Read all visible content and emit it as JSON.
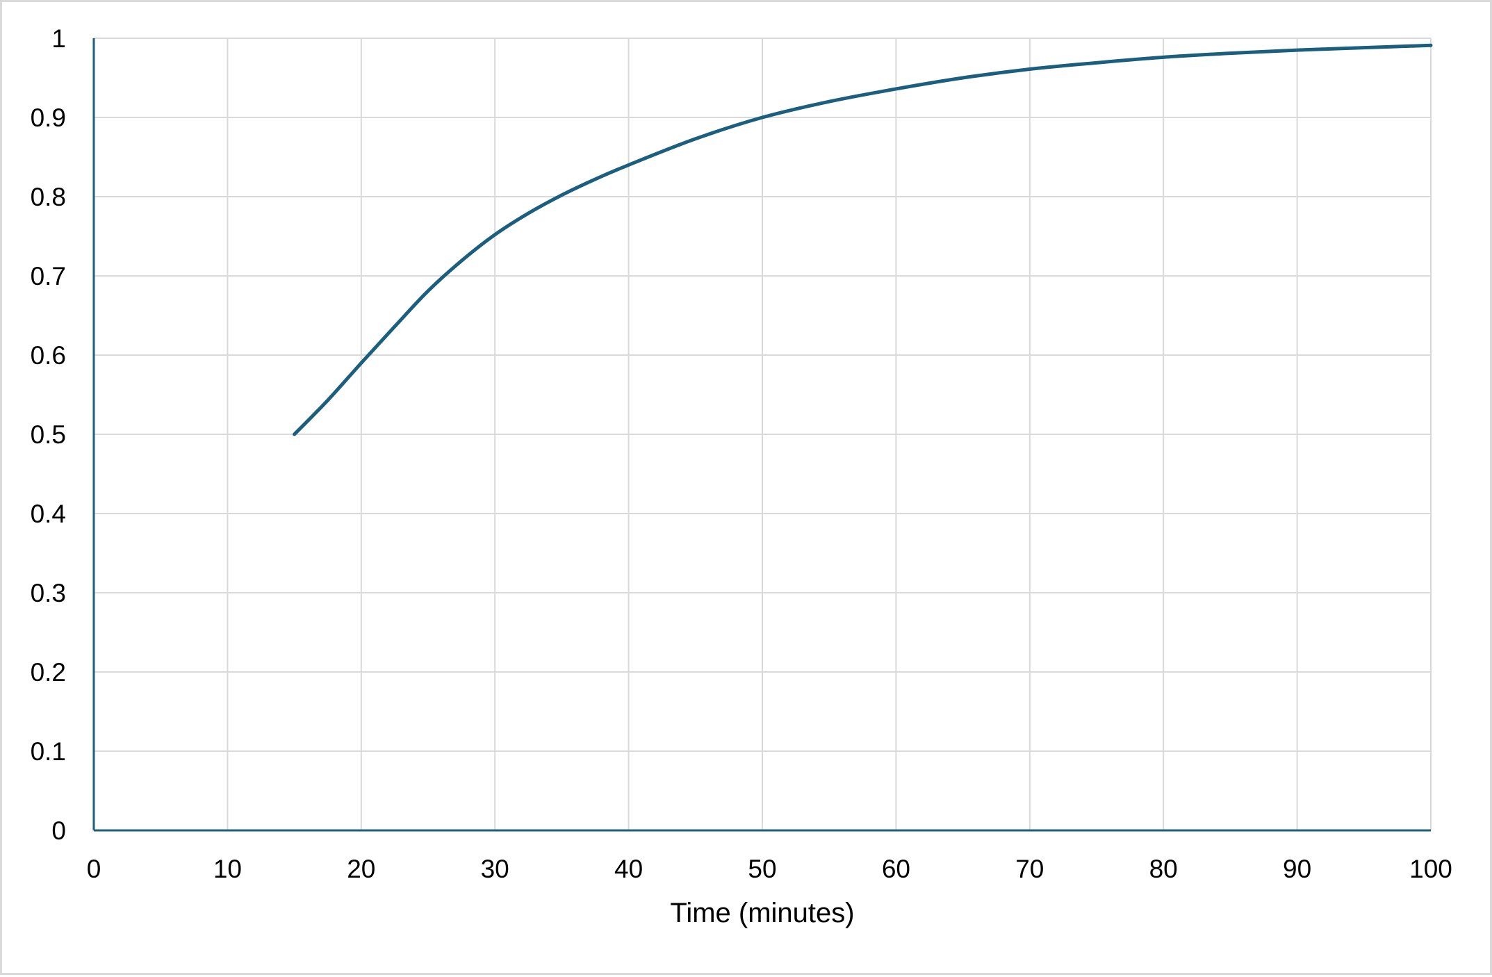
{
  "chart_data": {
    "type": "line",
    "title": "",
    "xlabel": "Time (minutes)",
    "ylabel": "",
    "xlim": [
      0,
      100
    ],
    "ylim": [
      0,
      1
    ],
    "x_ticks": [
      "0",
      "10",
      "20",
      "30",
      "40",
      "50",
      "60",
      "70",
      "80",
      "90",
      "100"
    ],
    "y_ticks": [
      "0",
      "0.1",
      "0.2",
      "0.3",
      "0.4",
      "0.5",
      "0.6",
      "0.7",
      "0.8",
      "0.9",
      "1"
    ],
    "grid": true,
    "legend": "none",
    "colors": {
      "line": "#1b5e7e",
      "axis": "#1b5e7e",
      "grid": "#d9d9d9"
    },
    "series": [
      {
        "x": [
          15,
          17.5,
          20,
          22.5,
          25,
          27.5,
          30,
          32.5,
          35,
          37.5,
          40,
          45,
          50,
          55,
          60,
          65,
          70,
          75,
          80,
          85,
          90,
          95,
          100
        ],
        "y": [
          0.5,
          0.543,
          0.59,
          0.636,
          0.681,
          0.719,
          0.752,
          0.779,
          0.802,
          0.822,
          0.84,
          0.873,
          0.9,
          0.92,
          0.936,
          0.95,
          0.961,
          0.969,
          0.976,
          0.981,
          0.985,
          0.988,
          0.991
        ]
      }
    ]
  }
}
